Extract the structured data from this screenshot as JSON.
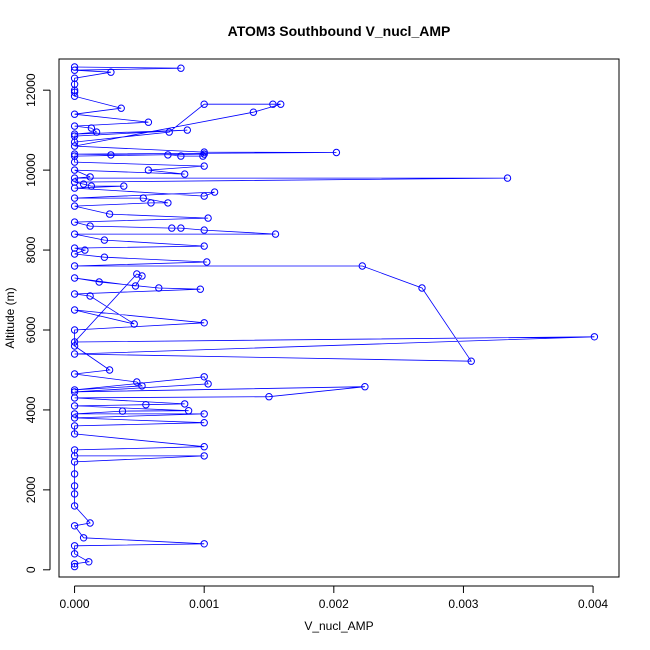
{
  "chart_data": {
    "type": "line",
    "title": "ATOM3 Southbound V_nucl_AMP",
    "xlabel": "V_nucl_AMP",
    "ylabel": "Altitude (m)",
    "xlim": [
      -0.00012,
      0.0042
    ],
    "ylim": [
      -180,
      12780
    ],
    "xticks": [
      0.0,
      0.001,
      0.002,
      0.003,
      0.004
    ],
    "xtick_labels": [
      "0.000",
      "0.001",
      "0.002",
      "0.003",
      "0.004"
    ],
    "yticks": [
      0,
      2000,
      4000,
      6000,
      8000,
      10000,
      12000
    ],
    "ytick_labels": [
      "0",
      "2000",
      "4000",
      "6000",
      "8000",
      "10000",
      "12000"
    ],
    "marker": "open-circle",
    "colors": {
      "series": "#0000ff",
      "axis": "#000000"
    },
    "series": [
      {
        "points": [
          [
            0.0,
            12580
          ],
          [
            0.00082,
            12550
          ],
          [
            0.0,
            12500
          ],
          [
            0.00028,
            12450
          ],
          [
            0.0,
            12300
          ],
          [
            0.0,
            12150
          ],
          [
            0.0,
            12000
          ],
          [
            0.0,
            11950
          ],
          [
            0.0,
            11850
          ],
          [
            0.00036,
            11550
          ],
          [
            0.0,
            11400
          ],
          [
            0.00057,
            11200
          ],
          [
            0.0,
            11100
          ],
          [
            0.00013,
            11050
          ],
          [
            0.00017,
            10950
          ],
          [
            0.0,
            10900
          ],
          [
            0.00087,
            11000
          ],
          [
            0.0,
            10850
          ],
          [
            0.0,
            10700
          ],
          [
            0.00073,
            10950
          ],
          [
            0.001,
            11650
          ],
          [
            0.00153,
            11650
          ],
          [
            0.00159,
            11650
          ],
          [
            0.00138,
            11450
          ],
          [
            0.0,
            10600
          ],
          [
            0.001,
            10450
          ],
          [
            0.00202,
            10440
          ],
          [
            0.0,
            10400
          ],
          [
            0.00028,
            10380
          ],
          [
            0.00072,
            10380
          ],
          [
            0.00082,
            10350
          ],
          [
            0.00099,
            10350
          ],
          [
            0.001,
            10400
          ],
          [
            0.0,
            10350
          ],
          [
            0.0,
            10200
          ],
          [
            0.001,
            10100
          ],
          [
            0.00057,
            10000
          ],
          [
            0.00085,
            9900
          ],
          [
            0.0,
            10000
          ],
          [
            0.00012,
            9830
          ],
          [
            0.0,
            9800
          ],
          [
            0.00334,
            9800
          ],
          [
            0.0,
            9700
          ],
          [
            7e-05,
            9650
          ],
          [
            0.00013,
            9600
          ],
          [
            0.00038,
            9600
          ],
          [
            0.0,
            9550
          ],
          [
            0.001,
            9350
          ],
          [
            0.00108,
            9450
          ],
          [
            0.0,
            9300
          ],
          [
            0.00053,
            9300
          ],
          [
            0.00072,
            9180
          ],
          [
            0.00059,
            9180
          ],
          [
            0.0,
            9100
          ],
          [
            0.00027,
            8900
          ],
          [
            0.00103,
            8800
          ],
          [
            0.0,
            8700
          ],
          [
            0.00012,
            8600
          ],
          [
            0.00075,
            8550
          ],
          [
            0.00082,
            8550
          ],
          [
            0.001,
            8500
          ],
          [
            0.00155,
            8400
          ],
          [
            0.0,
            8400
          ],
          [
            0.00023,
            8250
          ],
          [
            0.001,
            8100
          ],
          [
            0.0,
            8050
          ],
          [
            8e-05,
            8000
          ],
          [
            0.0,
            7900
          ],
          [
            0.00023,
            7820
          ],
          [
            0.00102,
            7700
          ],
          [
            0.0,
            7600
          ],
          [
            0.00222,
            7600
          ],
          [
            0.00268,
            7050
          ],
          [
            0.00306,
            5220
          ],
          [
            0.0,
            5400
          ],
          [
            0.00401,
            5830
          ],
          [
            0.0,
            5700
          ],
          [
            0.00048,
            7400
          ],
          [
            0.00052,
            7350
          ],
          [
            0.00047,
            7100
          ],
          [
            0.0,
            7300
          ],
          [
            0.00019,
            7200
          ],
          [
            0.00065,
            7050
          ],
          [
            0.00097,
            7020
          ],
          [
            0.0,
            6900
          ],
          [
            0.00012,
            6850
          ],
          [
            0.00046,
            6150
          ],
          [
            0.0,
            6500
          ],
          [
            0.001,
            6180
          ],
          [
            0.0,
            6000
          ],
          [
            0.0,
            5600
          ],
          [
            0.00027,
            5000
          ],
          [
            0.0,
            4900
          ],
          [
            0.00048,
            4700
          ],
          [
            0.00052,
            4600
          ],
          [
            0.0,
            4500
          ],
          [
            0.001,
            4830
          ],
          [
            0.00103,
            4650
          ],
          [
            0.0,
            4450
          ],
          [
            0.00224,
            4580
          ],
          [
            0.0015,
            4330
          ],
          [
            0.0,
            4300
          ],
          [
            0.00085,
            4150
          ],
          [
            0.00055,
            4130
          ],
          [
            0.0,
            4100
          ],
          [
            0.00088,
            3980
          ],
          [
            0.00037,
            3970
          ],
          [
            0.0,
            3900
          ],
          [
            0.001,
            3900
          ],
          [
            0.0,
            3800
          ],
          [
            0.001,
            3680
          ],
          [
            0.0,
            3600
          ],
          [
            0.0,
            3400
          ],
          [
            0.001,
            3080
          ],
          [
            0.0,
            3000
          ],
          [
            0.0,
            2850
          ],
          [
            0.001,
            2850
          ],
          [
            0.0,
            2700
          ],
          [
            0.0,
            2400
          ],
          [
            0.0,
            2100
          ],
          [
            0.0,
            1900
          ],
          [
            0.0,
            1600
          ],
          [
            0.00012,
            1170
          ],
          [
            0.0,
            1100
          ],
          [
            7e-05,
            800
          ],
          [
            0.001,
            650
          ],
          [
            0.0,
            600
          ],
          [
            0.0,
            400
          ],
          [
            0.00011,
            200
          ],
          [
            0.0,
            150
          ],
          [
            0.0,
            80
          ]
        ]
      }
    ]
  }
}
